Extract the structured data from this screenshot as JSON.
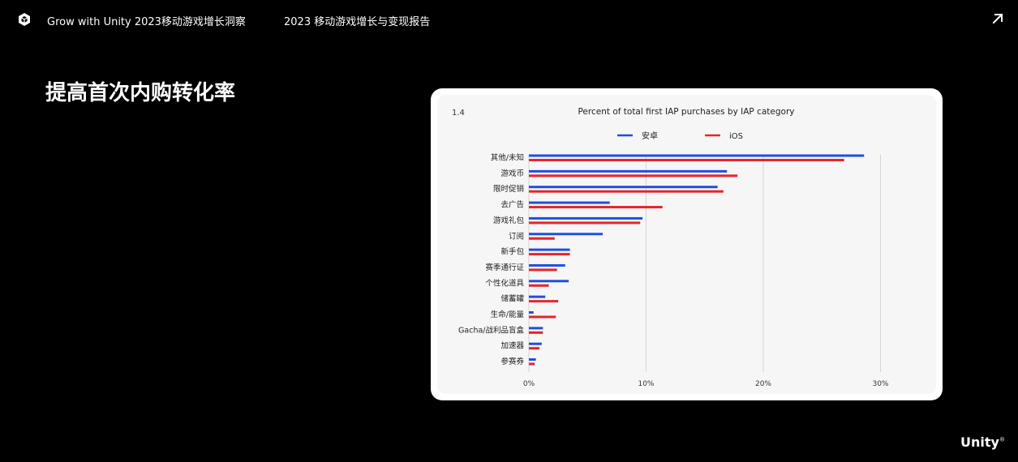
{
  "header": {
    "brand_title": "Grow with Unity 2023移动游戏增长洞察",
    "report_title": "2023 移动游戏增长与变现报告"
  },
  "page": {
    "heading": "提高首次内购转化率"
  },
  "footer": {
    "logo_text": "Unity",
    "registered_mark": "®"
  },
  "icons": {
    "top_left": "unity-cube-icon",
    "top_right": "arrow-up-right-icon"
  },
  "colors": {
    "background": "#000000",
    "android": "#1f4fe0",
    "ios": "#e8232a"
  },
  "chart_data": {
    "type": "bar",
    "orientation": "horizontal",
    "figure_number": "1.4",
    "title": "Percent of total first IAP purchases by IAP category",
    "xlabel": "",
    "ylabel": "",
    "xlim": [
      0,
      30
    ],
    "x_ticks": [
      "0%",
      "10%",
      "20%",
      "30%"
    ],
    "grid": true,
    "legend_position": "top",
    "categories": [
      "其他/未知",
      "游戏币",
      "限时促销",
      "去广告",
      "游戏礼包",
      "订阅",
      "新手包",
      "赛季通行证",
      "个性化道具",
      "储蓄罐",
      "生命/能量",
      "Gacha/战利品盲盒",
      "加速器",
      "参赛券"
    ],
    "series": [
      {
        "name": "安卓",
        "color": "#1f4fe0",
        "values": [
          28.6,
          16.9,
          16.1,
          6.9,
          9.7,
          6.3,
          3.5,
          3.1,
          3.4,
          1.4,
          0.4,
          1.2,
          1.1,
          0.6
        ]
      },
      {
        "name": "iOS",
        "color": "#e8232a",
        "values": [
          26.9,
          17.8,
          16.6,
          11.4,
          9.5,
          2.2,
          3.5,
          2.4,
          1.7,
          2.5,
          2.3,
          1.2,
          0.9,
          0.5
        ]
      }
    ]
  }
}
